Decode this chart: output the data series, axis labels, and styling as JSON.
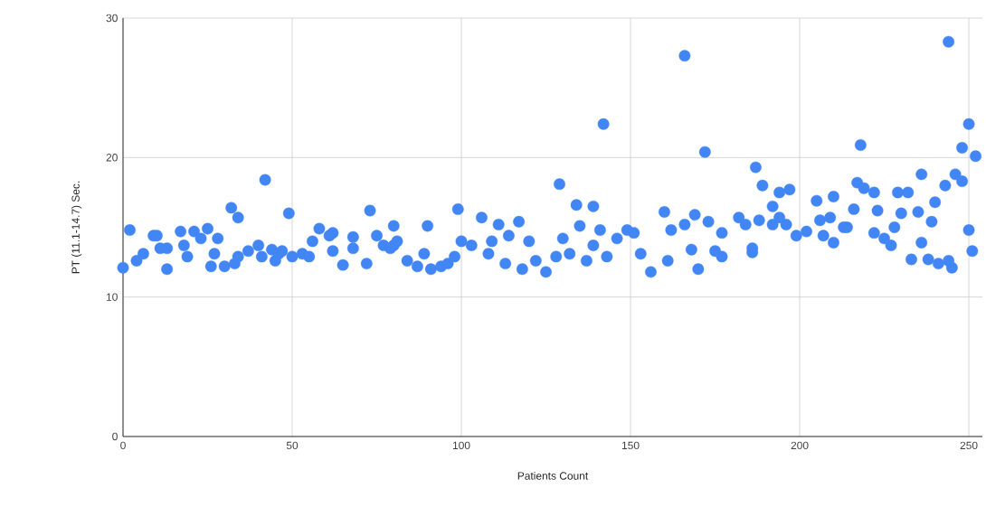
{
  "chart_data": {
    "type": "scatter",
    "xlabel": "Patients Count",
    "ylabel": "PT (11.1-14.7) Sec.",
    "xlim": [
      0,
      254
    ],
    "ylim": [
      0,
      30
    ],
    "xticks": [
      0,
      50,
      100,
      150,
      200,
      250
    ],
    "yticks": [
      0,
      10,
      20,
      30
    ],
    "grid": true,
    "series": [
      {
        "color": "#4285f4",
        "x": [
          0,
          2,
          4,
          6,
          9,
          10,
          11,
          13,
          13,
          17,
          18,
          19,
          21,
          23,
          25,
          26,
          27,
          28,
          30,
          32,
          34,
          33,
          34,
          37,
          40,
          42,
          41,
          44,
          45,
          46,
          47,
          49,
          50,
          53,
          55,
          56,
          58,
          61,
          62,
          65,
          62,
          68,
          68,
          72,
          73,
          75,
          77,
          80,
          80,
          81,
          79,
          84,
          87,
          90,
          91,
          89,
          94,
          96,
          98,
          99,
          100,
          103,
          106,
          108,
          111,
          109,
          113,
          114,
          117,
          118,
          120,
          122,
          125,
          128,
          129,
          130,
          134,
          135,
          132,
          137,
          139,
          141,
          139,
          142,
          143,
          146,
          149,
          151,
          153,
          156,
          160,
          162,
          161,
          166,
          244,
          250,
          248,
          252,
          218,
          172,
          187,
          189,
          194,
          197,
          192,
          169,
          166,
          173,
          177,
          182,
          184,
          188,
          192,
          196,
          199,
          202,
          205,
          206,
          209,
          210,
          210,
          213,
          216,
          217,
          219,
          222,
          223,
          222,
          225,
          227,
          228,
          229,
          232,
          230,
          235,
          236,
          239,
          236,
          233,
          238,
          241,
          245,
          244,
          240,
          243,
          246,
          248,
          250,
          251,
          168,
          170,
          175,
          177,
          186,
          186,
          194,
          207,
          214
        ],
        "values": [
          12.1,
          14.8,
          12.6,
          13.1,
          14.4,
          14.4,
          13.5,
          12,
          13.5,
          14.7,
          13.7,
          12.9,
          14.7,
          14.2,
          14.9,
          12.2,
          13.1,
          14.2,
          12.2,
          16.4,
          15.7,
          12.4,
          12.9,
          13.3,
          13.7,
          18.4,
          12.9,
          13.4,
          12.6,
          13.1,
          13.3,
          16,
          12.9,
          13.1,
          12.9,
          14,
          14.9,
          14.4,
          14.6,
          12.3,
          13.3,
          14.3,
          13.5,
          12.4,
          16.2,
          14.4,
          13.7,
          13.7,
          15.1,
          14,
          13.5,
          12.6,
          12.2,
          15.1,
          12,
          13.1,
          12.2,
          12.4,
          12.9,
          16.3,
          14,
          13.7,
          15.7,
          13.1,
          15.2,
          14,
          12.4,
          14.4,
          15.4,
          12,
          14,
          12.6,
          11.8,
          12.9,
          18.1,
          14.2,
          16.6,
          15.1,
          13.1,
          12.6,
          16.5,
          14.8,
          13.7,
          22.4,
          12.9,
          14.2,
          14.8,
          14.6,
          13.1,
          11.8,
          16.1,
          14.8,
          12.6,
          27.3,
          28.3,
          22.4,
          20.7,
          20.1,
          20.9,
          20.4,
          19.3,
          18,
          17.5,
          17.7,
          16.5,
          15.9,
          15.2,
          15.4,
          14.6,
          15.7,
          15.2,
          15.5,
          15.2,
          15.2,
          14.4,
          14.7,
          16.9,
          15.5,
          15.7,
          17.2,
          13.9,
          15,
          16.3,
          18.2,
          17.8,
          17.5,
          16.2,
          14.6,
          14.2,
          13.7,
          15,
          17.5,
          17.5,
          16,
          16.1,
          18.8,
          15.4,
          13.9,
          12.7,
          12.7,
          12.4,
          12.1,
          12.6,
          16.8,
          18,
          18.8,
          18.3,
          14.8,
          13.3,
          13.4,
          12,
          13.3,
          12.9,
          13.5,
          13.2,
          15.7,
          14.4,
          15
        ]
      }
    ]
  }
}
